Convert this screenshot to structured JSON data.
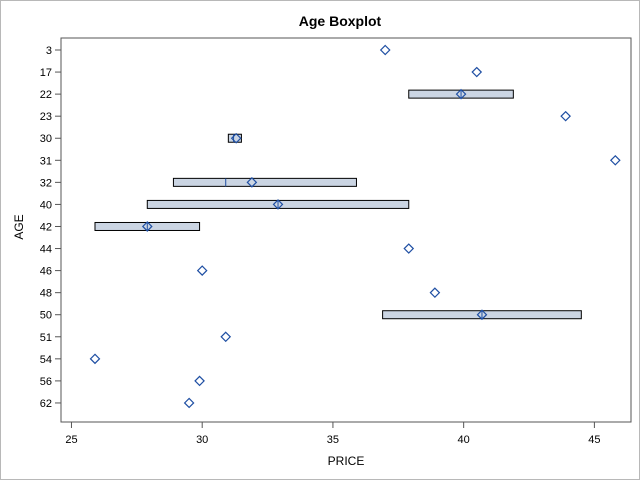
{
  "chart_data": {
    "type": "boxplot",
    "title": "Age Boxplot",
    "xlabel": "PRICE",
    "ylabel": "AGE",
    "xlim": [
      24.6,
      46.4
    ],
    "x_ticks": [
      25,
      30,
      35,
      40,
      45
    ],
    "x_tick_labels": [
      "25",
      "30",
      "35",
      "40",
      "45"
    ],
    "grid": false,
    "legend": "none",
    "colors": {
      "box_fill": "#cbd5e3",
      "box_stroke": "#000000",
      "mean_marker": "#1f4fa3",
      "frame": "#555555"
    },
    "categories": [
      "3",
      "17",
      "22",
      "23",
      "30",
      "31",
      "32",
      "40",
      "42",
      "44",
      "46",
      "48",
      "50",
      "51",
      "54",
      "56",
      "62"
    ],
    "boxes": [
      {
        "category": "3",
        "q1": 37.0,
        "median": 37.0,
        "q3": 37.0,
        "mean": 37.0
      },
      {
        "category": "17",
        "q1": 40.5,
        "median": 40.5,
        "q3": 40.5,
        "mean": 40.5
      },
      {
        "category": "22",
        "q1": 37.9,
        "median": 39.9,
        "q3": 41.9,
        "mean": 39.9
      },
      {
        "category": "23",
        "q1": 43.9,
        "median": 43.9,
        "q3": 43.9,
        "mean": 43.9
      },
      {
        "category": "30",
        "q1": 31.0,
        "median": 31.2,
        "q3": 31.5,
        "mean": 31.3
      },
      {
        "category": "31",
        "q1": 45.8,
        "median": 45.8,
        "q3": 45.8,
        "mean": 45.8
      },
      {
        "category": "32",
        "q1": 28.9,
        "median": 30.9,
        "q3": 35.9,
        "mean": 31.9
      },
      {
        "category": "40",
        "q1": 27.9,
        "median": 32.9,
        "q3": 37.9,
        "mean": 32.9
      },
      {
        "category": "42",
        "q1": 25.9,
        "median": 27.9,
        "q3": 29.9,
        "mean": 27.9
      },
      {
        "category": "44",
        "q1": 37.9,
        "median": 37.9,
        "q3": 37.9,
        "mean": 37.9
      },
      {
        "category": "46",
        "q1": 30.0,
        "median": 30.0,
        "q3": 30.0,
        "mean": 30.0
      },
      {
        "category": "48",
        "q1": 38.9,
        "median": 38.9,
        "q3": 38.9,
        "mean": 38.9
      },
      {
        "category": "50",
        "q1": 36.9,
        "median": 40.7,
        "q3": 44.5,
        "mean": 40.7
      },
      {
        "category": "51",
        "q1": 30.9,
        "median": 30.9,
        "q3": 30.9,
        "mean": 30.9
      },
      {
        "category": "54",
        "q1": 25.9,
        "median": 25.9,
        "q3": 25.9,
        "mean": 25.9
      },
      {
        "category": "56",
        "q1": 29.9,
        "median": 29.9,
        "q3": 29.9,
        "mean": 29.9
      },
      {
        "category": "62",
        "q1": 29.5,
        "median": 29.5,
        "q3": 29.5,
        "mean": 29.5
      }
    ]
  }
}
